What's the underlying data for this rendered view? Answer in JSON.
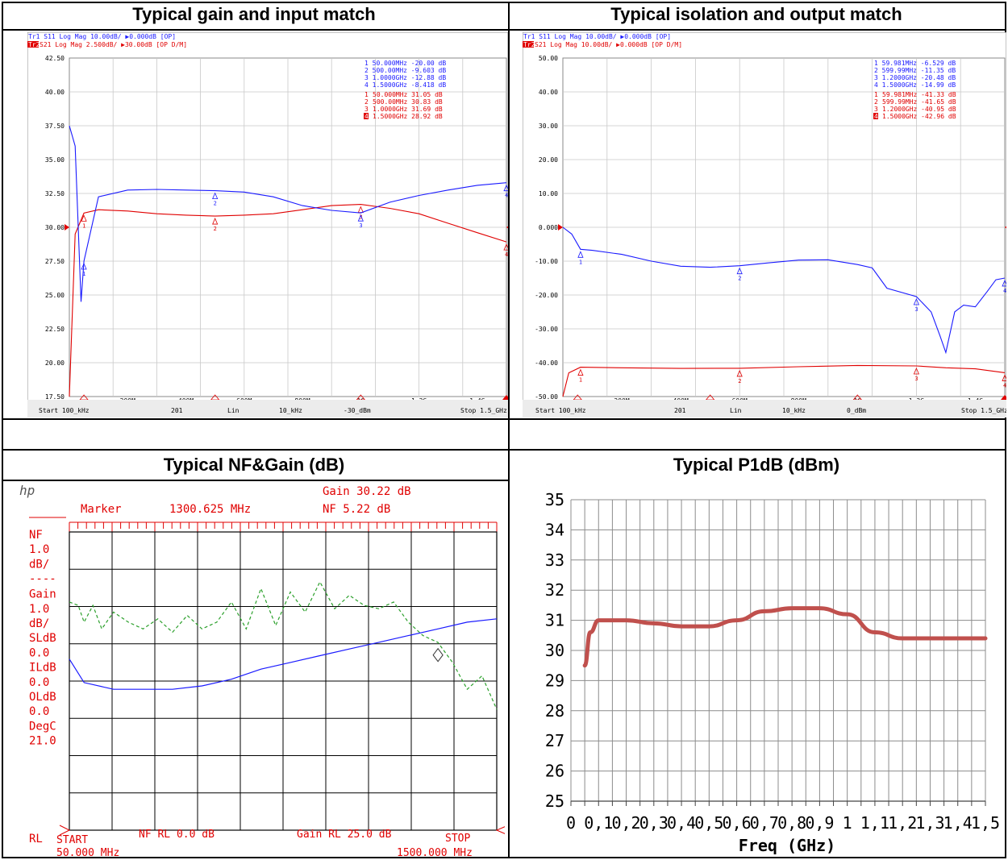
{
  "titles": {
    "top_left": "Typical gain and input match",
    "top_right": "Typical isolation and output match",
    "bottom_left": "Typical NF&Gain (dB)",
    "bottom_right": "Typical P1dB (dBm)"
  },
  "colors": {
    "blue": "#1a1aff",
    "red": "#e00000",
    "green": "#2ca02c",
    "p1db": "#c0504d",
    "vna_bg": "#ffffff",
    "grid": "#c8c8c8"
  },
  "vna1": {
    "header": {
      "tr1": "Tr1  S11  Log Mag  10.00dB/  ▶0.000dB  [OP]",
      "tr2_tag": "Tr2",
      "tr2": " S21  Log Mag  2.500dB/  ▶30.00dB  [OP D/M]"
    },
    "y_ticks": [
      "42.50",
      "40.00",
      "37.50",
      "35.00",
      "32.50",
      "30.00",
      "27.50",
      "25.00",
      "22.50",
      "20.00",
      "17.50"
    ],
    "x_ticks": [
      "200M",
      "400M",
      "600M",
      "800M",
      "1G",
      "1.2G",
      "1.4G"
    ],
    "footer": {
      "start": "Start 100_kHz",
      "points": "201",
      "mode": "Lin",
      "bw": "10_kHz",
      "power": "-30_dBm",
      "stop": "Stop 1.5_GHz"
    },
    "markers_s11": [
      {
        "num": "1",
        "freq": "50.000MHz",
        "val": "-20.00 dB"
      },
      {
        "num": "2",
        "freq": "500.00MHz",
        "val": "-9.603 dB"
      },
      {
        "num": "3",
        "freq": "1.0000GHz",
        "val": "-12.88 dB"
      },
      {
        "num": "4",
        "freq": "1.5000GHz",
        "val": "-8.418 dB"
      }
    ],
    "markers_s21": [
      {
        "num": "1",
        "freq": "50.000MHz",
        "val": "31.05 dB"
      },
      {
        "num": "2",
        "freq": "500.00MHz",
        "val": "30.83 dB"
      },
      {
        "num": "3",
        "freq": "1.0000GHz",
        "val": "31.69 dB"
      },
      {
        "num": "4",
        "freq": "1.5000GHz",
        "val": "28.92 dB"
      }
    ]
  },
  "vna2": {
    "header": {
      "tr1": "Tr1  S11  Log Mag  10.00dB/  ▶0.000dB  [OP]",
      "tr2_tag": "Tr2",
      "tr2": " S21  Log Mag  10.00dB/  ▶0.000dB  [OP D/M]"
    },
    "y_ticks": [
      "50.00",
      "40.00",
      "30.00",
      "20.00",
      "10.00",
      "0.000",
      "-10.00",
      "-20.00",
      "-30.00",
      "-40.00",
      "-50.00"
    ],
    "x_ticks": [
      "200M",
      "400M",
      "600M",
      "800M",
      "1G",
      "1.2G",
      "1.4G"
    ],
    "footer": {
      "start": "Start 100_kHz",
      "points": "201",
      "mode": "Lin",
      "bw": "10_kHz",
      "power": "0_dBm",
      "stop": "Stop 1.5_GHz"
    },
    "markers_s11": [
      {
        "num": "1",
        "freq": "59.981MHz",
        "val": "-6.529 dB"
      },
      {
        "num": "2",
        "freq": "599.99MHz",
        "val": "-11.35 dB"
      },
      {
        "num": "3",
        "freq": "1.2000GHz",
        "val": "-20.48 dB"
      },
      {
        "num": "4",
        "freq": "1.5000GHz",
        "val": "-14.99 dB"
      }
    ],
    "markers_s21": [
      {
        "num": "1",
        "freq": "59.981MHz",
        "val": "-41.33 dB"
      },
      {
        "num": "2",
        "freq": "599.99MHz",
        "val": "-41.65 dB"
      },
      {
        "num": "3",
        "freq": "1.2000GHz",
        "val": "-40.95 dB"
      },
      {
        "num": "4",
        "freq": "1.5000GHz",
        "val": "-42.96 dB"
      }
    ]
  },
  "nf": {
    "hp": "hp",
    "top_line": "Gain  30.22  dB",
    "marker_label": "Marker",
    "marker_freq": "1300.625 MHz",
    "marker_nf": "NF  5.22  dB",
    "left_labels": [
      "NF",
      "1.0",
      "dB/",
      "----",
      "Gain",
      "1.0",
      "dB/",
      "SLdB",
      "0.0",
      "ILdB",
      "0.0",
      "OLdB",
      "0.0",
      "DegC",
      "21.0"
    ],
    "rl": "RL",
    "bottom_nf_rl": "NF  RL   0.0  dB",
    "bottom_gain_rl": "Gain  RL  25.0  dB",
    "start_label": "START",
    "start_freq": "50.000  MHz",
    "stop_label": "STOP",
    "stop_freq": "1500.000  MHz"
  },
  "chart_data": [
    {
      "type": "line",
      "title": "Typical gain and input match",
      "x_unit": "Hz",
      "xlim": [
        100000,
        1500000000
      ],
      "series": [
        {
          "name": "S21",
          "y_axis": "right",
          "ylim": [
            17.5,
            42.5
          ],
          "x": [
            0.0001,
            0.02,
            0.05,
            0.1,
            0.2,
            0.3,
            0.4,
            0.5,
            0.6,
            0.7,
            0.8,
            0.9,
            1.0,
            1.1,
            1.2,
            1.3,
            1.4,
            1.5
          ],
          "y": [
            17.5,
            29.5,
            31.05,
            31.3,
            31.2,
            31.0,
            30.9,
            30.83,
            30.9,
            31.0,
            31.3,
            31.6,
            31.69,
            31.4,
            31.0,
            30.3,
            29.6,
            28.92
          ]
        },
        {
          "name": "S11",
          "y_axis": "left",
          "ylim": [
            -40,
            10
          ],
          "x": [
            0.0001,
            0.02,
            0.04,
            0.05,
            0.1,
            0.2,
            0.3,
            0.4,
            0.5,
            0.6,
            0.7,
            0.8,
            0.9,
            1.0,
            1.1,
            1.2,
            1.3,
            1.4,
            1.5
          ],
          "y": [
            0,
            -3,
            -26,
            -20,
            -10.5,
            -9.5,
            -9.4,
            -9.5,
            -9.6,
            -9.8,
            -10.5,
            -11.8,
            -12.5,
            -12.88,
            -11.3,
            -10.3,
            -9.5,
            -8.8,
            -8.418
          ]
        }
      ]
    },
    {
      "type": "line",
      "title": "Typical isolation and output match",
      "x_unit": "Hz",
      "xlim": [
        100000,
        1500000000
      ],
      "ylim": [
        -50,
        50
      ],
      "series": [
        {
          "name": "S22",
          "x": [
            0.0001,
            0.03,
            0.06,
            0.1,
            0.2,
            0.3,
            0.4,
            0.5,
            0.6,
            0.7,
            0.8,
            0.9,
            1.0,
            1.05,
            1.1,
            1.2,
            1.25,
            1.28,
            1.3,
            1.33,
            1.36,
            1.4,
            1.44,
            1.47,
            1.5
          ],
          "y": [
            0,
            -2,
            -6.5,
            -6.8,
            -8,
            -10,
            -11.5,
            -11.8,
            -11.35,
            -10.5,
            -9.7,
            -9.6,
            -11,
            -12,
            -18,
            -20.48,
            -25,
            -32,
            -37,
            -25,
            -23,
            -23.5,
            -19,
            -15.5,
            -14.99
          ]
        },
        {
          "name": "S12",
          "x": [
            0.0001,
            0.02,
            0.06,
            0.2,
            0.4,
            0.6,
            0.8,
            1.0,
            1.2,
            1.3,
            1.4,
            1.5
          ],
          "y": [
            -50,
            -43,
            -41.33,
            -41.5,
            -41.7,
            -41.65,
            -41.2,
            -40.8,
            -40.95,
            -41.5,
            -41.8,
            -42.96
          ]
        }
      ]
    },
    {
      "type": "line",
      "title": "Typical NF&Gain (dB)",
      "x_unit": "MHz",
      "xlim": [
        50,
        1500
      ],
      "series": [
        {
          "name": "NF",
          "x": [
            50,
            80,
            100,
            130,
            160,
            200,
            250,
            300,
            350,
            400,
            450,
            500,
            550,
            600,
            650,
            700,
            750,
            800,
            850,
            900,
            950,
            1000,
            1050,
            1100,
            1150,
            1200,
            1250,
            1300,
            1350,
            1400,
            1450,
            1500
          ],
          "y": [
            6.8,
            6.7,
            6.2,
            6.7,
            6.0,
            6.5,
            6.2,
            6.0,
            6.3,
            5.9,
            6.4,
            6.0,
            6.2,
            6.8,
            6.0,
            7.2,
            6.1,
            7.1,
            6.5,
            7.4,
            6.6,
            7.0,
            6.7,
            6.6,
            6.8,
            6.2,
            5.8,
            5.6,
            5.0,
            4.2,
            4.6,
            3.6
          ]
        },
        {
          "name": "Gain",
          "x": [
            50,
            100,
            200,
            300,
            400,
            500,
            600,
            700,
            800,
            900,
            1000,
            1100,
            1200,
            1300,
            1400,
            1500
          ],
          "y": [
            4.1,
            3.4,
            3.2,
            3.2,
            3.2,
            3.3,
            3.5,
            3.8,
            4.0,
            4.2,
            4.4,
            4.6,
            4.8,
            5.0,
            5.2,
            5.3
          ]
        }
      ]
    },
    {
      "type": "line",
      "title": "Typical P1dB (dBm)",
      "xlabel": "Freq (GHz)",
      "x_tick_labels": [
        "0",
        "0,1",
        "0,2",
        "0,3",
        "0,4",
        "0,5",
        "0,6",
        "0,7",
        "0,8",
        "0,9",
        "1",
        "1,1",
        "1,2",
        "1,3",
        "1,4",
        "1,5"
      ],
      "y_tick_labels": [
        "25",
        "26",
        "27",
        "28",
        "29",
        "30",
        "31",
        "32",
        "33",
        "34",
        "35"
      ],
      "xlim": [
        0,
        1.5
      ],
      "ylim": [
        25,
        35
      ],
      "series": [
        {
          "name": "P1dB",
          "x": [
            0.05,
            0.07,
            0.1,
            0.15,
            0.2,
            0.3,
            0.4,
            0.5,
            0.6,
            0.7,
            0.8,
            0.9,
            1.0,
            1.1,
            1.2,
            1.3,
            1.4,
            1.5
          ],
          "y": [
            29.5,
            30.6,
            31.0,
            31.0,
            31.0,
            30.9,
            30.8,
            30.8,
            31.0,
            31.3,
            31.4,
            31.4,
            31.2,
            30.6,
            30.4,
            30.4,
            30.4,
            30.4
          ]
        }
      ]
    }
  ]
}
